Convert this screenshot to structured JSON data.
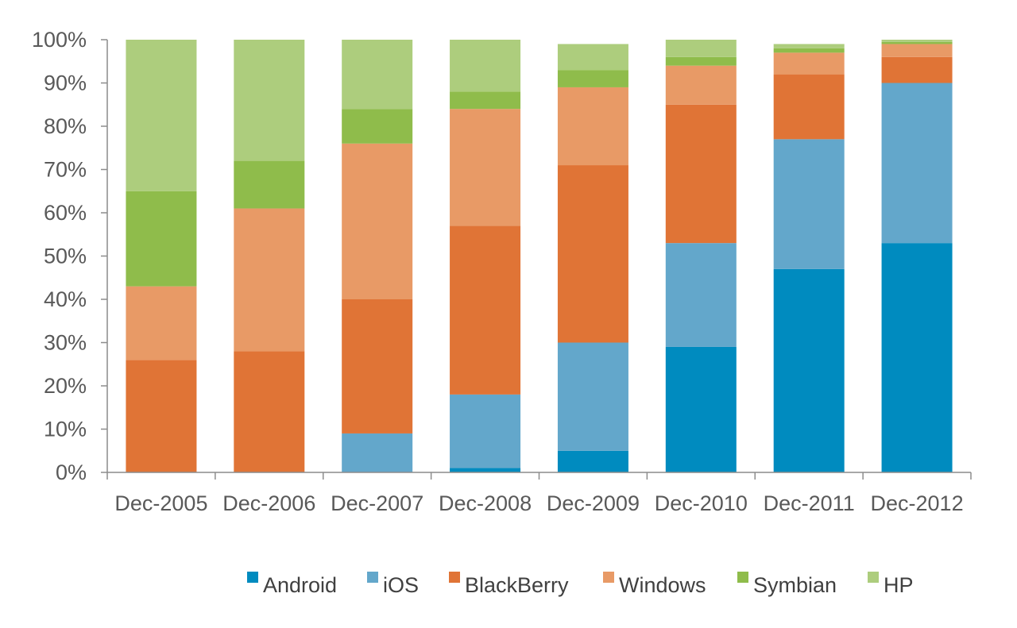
{
  "chart_data": {
    "type": "bar",
    "stacked": true,
    "normalized": true,
    "categories": [
      "Dec-2005",
      "Dec-2006",
      "Dec-2007",
      "Dec-2008",
      "Dec-2009",
      "Dec-2010",
      "Dec-2011",
      "Dec-2012"
    ],
    "series": [
      {
        "name": "Android",
        "color": "#008BBF",
        "values": [
          0,
          0,
          0,
          1,
          5,
          29,
          47,
          53
        ]
      },
      {
        "name": "iOS",
        "color": "#63A7CB",
        "values": [
          0,
          0,
          9,
          17,
          25,
          24,
          30,
          37
        ]
      },
      {
        "name": "BlackBerry",
        "color": "#E07436",
        "values": [
          26,
          28,
          31,
          39,
          41,
          32,
          15,
          6
        ]
      },
      {
        "name": "Windows",
        "color": "#E89A66",
        "values": [
          17,
          33,
          36,
          27,
          18,
          9,
          5,
          3
        ]
      },
      {
        "name": "Symbian",
        "color": "#8FBC4B",
        "values": [
          22,
          11,
          8,
          4,
          4,
          2,
          1,
          0.5
        ]
      },
      {
        "name": "HP",
        "color": "#ADCD7D",
        "values": [
          35,
          28,
          16,
          12,
          6,
          4,
          1,
          0.5
        ]
      }
    ],
    "ylim": [
      0,
      100
    ],
    "y_ticks": [
      "0%",
      "10%",
      "20%",
      "30%",
      "40%",
      "50%",
      "60%",
      "70%",
      "80%",
      "90%",
      "100%"
    ],
    "title": "",
    "xlabel": "",
    "ylabel": "",
    "grid": false,
    "legend_position": "bottom"
  }
}
